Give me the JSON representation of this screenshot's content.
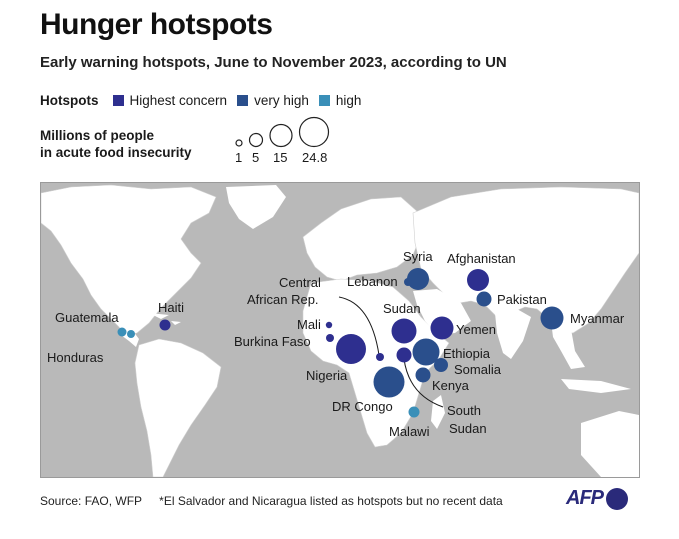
{
  "title": "Hunger hotspots",
  "subtitle": "Early warning hotspots, June to November 2023, according to UN",
  "legend": {
    "label": "Hotspots",
    "items": [
      {
        "label": "Highest concern",
        "color": "#2e2f8f"
      },
      {
        "label": "very high",
        "color": "#2a4f8c"
      },
      {
        "label": "high",
        "color": "#3a8fb8"
      }
    ]
  },
  "size_legend": {
    "line1": "Millions of people",
    "line2": "in acute food insecurity",
    "values": [
      "1",
      "5",
      "15",
      "24.8"
    ]
  },
  "colors": {
    "highest": "#2e2f8f",
    "very_high": "#2a4f8c",
    "high": "#3a8fb8",
    "land": "#ffffff",
    "sea": "#b9b9b9"
  },
  "hotspots": [
    {
      "name": "Guatemala",
      "level": "high"
    },
    {
      "name": "Honduras",
      "level": "high"
    },
    {
      "name": "Haiti",
      "level": "highest"
    },
    {
      "name": "Mali",
      "level": "highest"
    },
    {
      "name": "Burkina Faso",
      "level": "highest"
    },
    {
      "name": "Nigeria",
      "level": "highest"
    },
    {
      "name": "Central African Rep.",
      "level": "highest"
    },
    {
      "name": "DR Congo",
      "level": "very_high"
    },
    {
      "name": "Malawi",
      "level": "high"
    },
    {
      "name": "Sudan",
      "level": "highest"
    },
    {
      "name": "South Sudan",
      "level": "highest"
    },
    {
      "name": "Ethiopia",
      "level": "very_high"
    },
    {
      "name": "Somalia",
      "level": "very_high"
    },
    {
      "name": "Kenya",
      "level": "very_high"
    },
    {
      "name": "Yemen",
      "level": "highest"
    },
    {
      "name": "Syria",
      "level": "very_high"
    },
    {
      "name": "Lebanon",
      "level": "very_high"
    },
    {
      "name": "Afghanistan",
      "level": "highest"
    },
    {
      "name": "Pakistan",
      "level": "very_high"
    },
    {
      "name": "Myanmar",
      "level": "very_high"
    }
  ],
  "labels": {
    "syria": "Syria",
    "afghanistan": "Afghanistan",
    "lebanon": "Lebanon",
    "pakistan": "Pakistan",
    "car_line1": "Central",
    "car_line2": "African Rep.",
    "haiti": "Haiti",
    "guatemala": "Guatemala",
    "honduras": "Honduras",
    "sudan": "Sudan",
    "myanmar": "Myanmar",
    "mali": "Mali",
    "yemen": "Yemen",
    "burkina": "Burkina Faso",
    "ethiopia": "Ethiopia",
    "somalia": "Somalia",
    "nigeria": "Nigeria",
    "kenya": "Kenya",
    "drc": "DR Congo",
    "south_line1": "South",
    "south_line2": "Sudan",
    "malawi": "Malawi"
  },
  "footer": {
    "source": "Source: FAO, WFP",
    "note": "*El Salvador and Nicaragua listed as hotspots but no recent data",
    "logo": "AFP"
  }
}
